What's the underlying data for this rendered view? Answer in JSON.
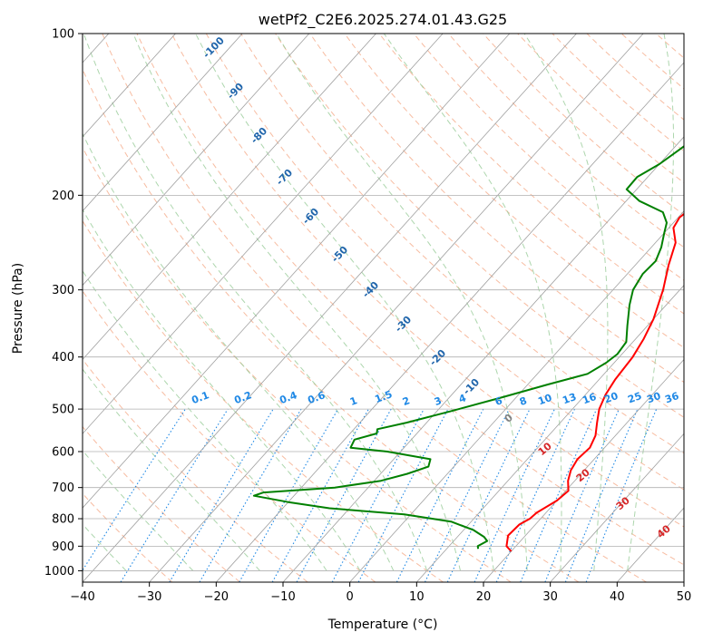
{
  "chart_data": {
    "type": "line",
    "title": "wetPf2_C2E6.2025.274.01.43.G25",
    "xlabel": "Temperature (°C)",
    "ylabel": "Pressure (hPa)",
    "xlim": [
      -40,
      50
    ],
    "ylim": [
      1050,
      100
    ],
    "y_scale": "log",
    "grid": true,
    "x_ticks": [
      -40,
      -30,
      -20,
      -10,
      0,
      10,
      20,
      30,
      40,
      50
    ],
    "y_ticks": [
      100,
      200,
      300,
      400,
      500,
      600,
      700,
      800,
      900,
      1000
    ],
    "x_tick_labels": [
      "−40",
      "−30",
      "−20",
      "−10",
      "0",
      "10",
      "20",
      "30",
      "40",
      "50"
    ],
    "y_tick_labels": [
      "100",
      "200",
      "300",
      "400",
      "500",
      "600",
      "700",
      "800",
      "900",
      "1000"
    ],
    "colors": {
      "temperature": "#ff0000",
      "dewpoint": "#008000",
      "isotherm": "#a0a0a0",
      "dry_adiabat": "#f4a582",
      "moist_adiabat": "#99cc99",
      "mixing_ratio": "#1e88e5",
      "isotherm_label": "#2166ac",
      "mixing_ratio_label": "#1e88e5",
      "moist_label_red": "#d62728",
      "moist_label_grey": "#808080"
    },
    "series": [
      {
        "key": "temperature",
        "points": [
          [
            20.0,
            920
          ],
          [
            18.6,
            900
          ],
          [
            17.4,
            860
          ],
          [
            17.6,
            820
          ],
          [
            18.4,
            800
          ],
          [
            18.6,
            780
          ],
          [
            20.0,
            740
          ],
          [
            20.4,
            710
          ],
          [
            19.0,
            680
          ],
          [
            18.0,
            650
          ],
          [
            17.5,
            620
          ],
          [
            17.8,
            590
          ],
          [
            17.0,
            560
          ],
          [
            15.5,
            530
          ],
          [
            14.0,
            500
          ],
          [
            13.0,
            470
          ],
          [
            12.4,
            440
          ],
          [
            12.0,
            400
          ],
          [
            11.2,
            370
          ],
          [
            10.0,
            340
          ],
          [
            7.5,
            300
          ],
          [
            5.0,
            270
          ],
          [
            3.0,
            245
          ],
          [
            0.7,
            230
          ],
          [
            0.2,
            220
          ],
          [
            0.8,
            210
          ],
          [
            3.0,
            200
          ],
          [
            4.0,
            190
          ],
          [
            4.3,
            180
          ],
          [
            5.0,
            168
          ],
          [
            6.0,
            160
          ],
          [
            8.0,
            152
          ],
          [
            10.5,
            145
          ],
          [
            12.0,
            140
          ],
          [
            13.0,
            133
          ],
          [
            13.4,
            125
          ],
          [
            12.8,
            115
          ],
          [
            12.6,
            107
          ],
          [
            12.8,
            100
          ]
        ]
      },
      {
        "key": "dewpoint",
        "points": [
          [
            14.7,
            910
          ],
          [
            14.3,
            900
          ],
          [
            15.0,
            880
          ],
          [
            14.0,
            865
          ],
          [
            11.5,
            840
          ],
          [
            7.0,
            810
          ],
          [
            -1.0,
            785
          ],
          [
            -13.0,
            765
          ],
          [
            -20.0,
            745
          ],
          [
            -26.0,
            725
          ],
          [
            -25.0,
            715
          ],
          [
            -15.0,
            700
          ],
          [
            -9.0,
            680
          ],
          [
            -6.0,
            660
          ],
          [
            -3.8,
            640
          ],
          [
            -4.5,
            620
          ],
          [
            -12.0,
            600
          ],
          [
            -18.0,
            590
          ],
          [
            -18.5,
            570
          ],
          [
            -16.0,
            555
          ],
          [
            -16.5,
            545
          ],
          [
            -13.0,
            530
          ],
          [
            -8.0,
            505
          ],
          [
            -2.0,
            475
          ],
          [
            3.0,
            450
          ],
          [
            7.5,
            430
          ],
          [
            8.8,
            410
          ],
          [
            9.3,
            395
          ],
          [
            9.0,
            375
          ],
          [
            7.0,
            350
          ],
          [
            4.5,
            320
          ],
          [
            3.0,
            300
          ],
          [
            2.3,
            280
          ],
          [
            2.5,
            265
          ],
          [
            1.5,
            250
          ],
          [
            0.0,
            235
          ],
          [
            -1.0,
            225
          ],
          [
            -3.0,
            215
          ],
          [
            -8.0,
            205
          ],
          [
            -11.5,
            195
          ],
          [
            -11.6,
            185
          ],
          [
            -10.0,
            175
          ],
          [
            -9.0,
            165
          ],
          [
            -8.0,
            155
          ],
          [
            -6.0,
            140
          ],
          [
            -3.5,
            125
          ],
          [
            0.0,
            112
          ],
          [
            2.5,
            105
          ],
          [
            4.2,
            100
          ]
        ]
      }
    ],
    "isotherm_labels": [
      "-100",
      "-90",
      "-80",
      "-70",
      "-60",
      "-50",
      "-40",
      "-30",
      "-20",
      "-10"
    ],
    "mixing_ratio_labels": [
      "0.1",
      "0.2",
      "0.4",
      "0.6",
      "1",
      "1.5",
      "2",
      "3",
      "4",
      "6",
      "8",
      "10",
      "13",
      "16",
      "20",
      "25",
      "30",
      "36"
    ],
    "moist_adiabat_labels": [
      "0",
      "10",
      "20",
      "30",
      "40"
    ]
  }
}
